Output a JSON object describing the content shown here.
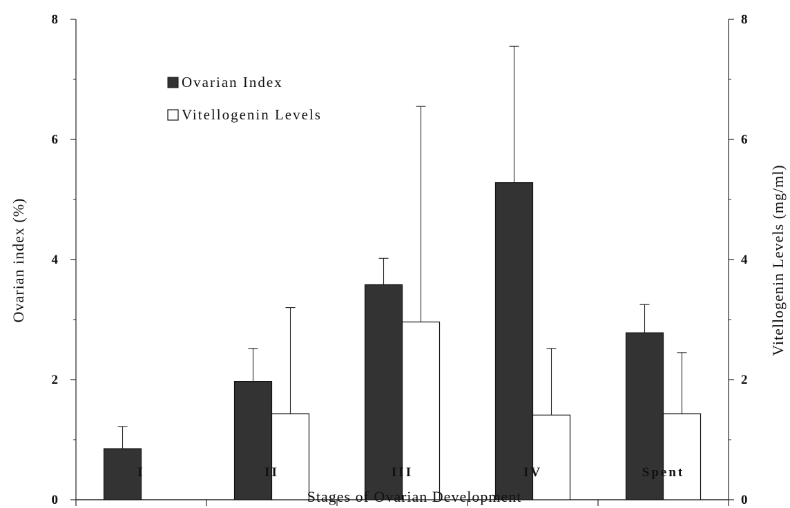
{
  "chart_data": {
    "type": "bar",
    "xlabel": "Stages of Ovarian Development",
    "ylabel_left": "Ovarian index (%)",
    "ylabel_right": "Vitellogenin Levels (mg/ml)",
    "categories": [
      "I",
      "II",
      "III",
      "IV",
      "Spent"
    ],
    "ylim_left": [
      0,
      8
    ],
    "ylim_right": [
      0,
      8
    ],
    "yticks_left": [
      "0",
      "2",
      "4",
      "6",
      "8"
    ],
    "yticks_right": [
      "0",
      "2",
      "4",
      "6",
      "8"
    ],
    "grid": false,
    "legend_position": "top-left",
    "series": [
      {
        "name": "Ovarian Index",
        "axis": "left",
        "color": "#333333",
        "values": [
          0.85,
          1.97,
          3.58,
          5.28,
          2.78
        ],
        "error_upper": [
          1.22,
          2.52,
          4.02,
          7.55,
          3.25
        ]
      },
      {
        "name": "Vitellogenin Levels",
        "axis": "right",
        "color": "#ffffff",
        "values": [
          0,
          1.43,
          2.96,
          1.41,
          1.43
        ],
        "error_upper": [
          0,
          3.2,
          6.55,
          2.52,
          2.45
        ]
      }
    ]
  }
}
